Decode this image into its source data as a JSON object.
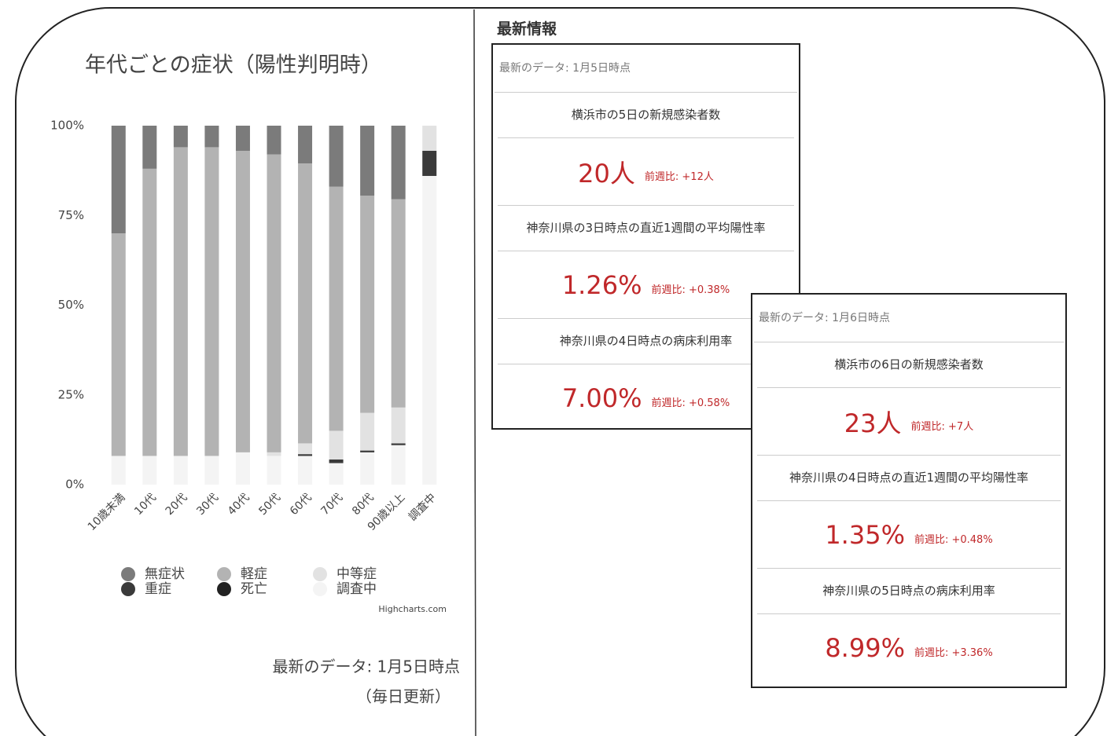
{
  "chart_data": {
    "type": "bar",
    "stacked": true,
    "title": "年代ごとの症状（陽性判明時）",
    "categories": [
      "10歳未満",
      "10代",
      "20代",
      "30代",
      "40代",
      "50代",
      "60代",
      "70代",
      "80代",
      "90歳以上",
      "調査中"
    ],
    "series": [
      {
        "name": "無症状",
        "color": "#7b7b7b",
        "values": [
          30,
          12,
          6,
          6,
          7,
          8,
          10.5,
          17,
          19.5,
          20.5,
          0
        ]
      },
      {
        "name": "軽症",
        "color": "#b3b3b3",
        "values": [
          62,
          80,
          86,
          86,
          84,
          83,
          78,
          68,
          60.5,
          58,
          0
        ]
      },
      {
        "name": "中等症",
        "color": "#e2e2e2",
        "values": [
          0,
          0,
          0,
          0,
          0,
          1,
          3,
          8,
          10.5,
          10,
          7
        ]
      },
      {
        "name": "重症",
        "color": "#3a3a3a",
        "values": [
          0,
          0,
          0,
          0,
          0,
          0,
          0.5,
          1,
          0.5,
          0.5,
          7
        ]
      },
      {
        "name": "死亡",
        "color": "#222222",
        "values": [
          0,
          0,
          0,
          0,
          0,
          0,
          0,
          0,
          0,
          0,
          0
        ]
      },
      {
        "name": "調査中",
        "color": "#f4f4f4",
        "values": [
          8,
          8,
          8,
          8,
          9,
          8,
          8,
          6,
          9,
          11,
          86
        ]
      }
    ],
    "ylim": [
      0,
      100
    ],
    "yticks": [
      {
        "value": 0,
        "label": "0%"
      },
      {
        "value": 25,
        "label": "25%"
      },
      {
        "value": 50,
        "label": "50%"
      },
      {
        "value": 75,
        "label": "75%"
      },
      {
        "value": 100,
        "label": "100%"
      }
    ],
    "credit": "Highcharts.com",
    "footer": [
      "最新のデータ: 1月5日時点",
      "（毎日更新）"
    ]
  },
  "latest": {
    "heading": "最新情報",
    "cards": [
      {
        "date": "最新のデータ: 1月5日時点",
        "items": [
          {
            "label": "横浜市の5日の新規感染者数",
            "value": "20人",
            "change": "前週比: +12人"
          },
          {
            "label": "神奈川県の3日時点の直近1週間の平均陽性率",
            "value": "1.26%",
            "change": "前週比: +0.38%"
          },
          {
            "label": "神奈川県の4日時点の病床利用率",
            "value": "7.00%",
            "change": "前週比: +0.58%"
          }
        ]
      },
      {
        "date": "最新のデータ: 1月6日時点",
        "items": [
          {
            "label": "横浜市の6日の新規感染者数",
            "value": "23人",
            "change": "前週比: +7人"
          },
          {
            "label": "神奈川県の4日時点の直近1週間の平均陽性率",
            "value": "1.35%",
            "change": "前週比: +0.48%"
          },
          {
            "label": "神奈川県の5日時点の病床利用率",
            "value": "8.99%",
            "change": "前週比: +3.36%"
          }
        ]
      }
    ]
  }
}
